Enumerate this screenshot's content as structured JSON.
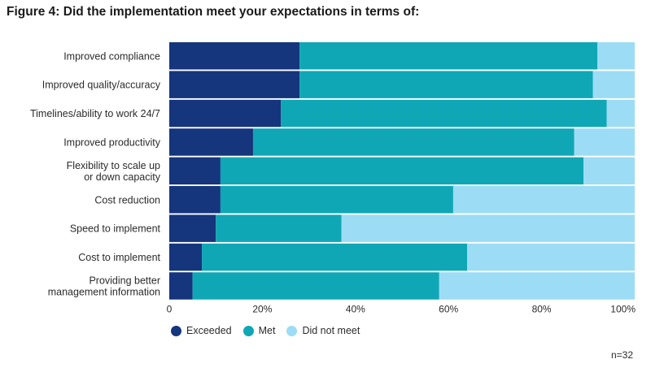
{
  "title": "Figure 4: Did the implementation meet your expectations in terms of:",
  "sample_note": "n=32",
  "colors": {
    "exceeded": "#15357d",
    "met": "#0fa7b5",
    "did_not_meet": "#9ddcf5"
  },
  "chart_data": {
    "type": "bar",
    "orientation": "horizontal",
    "stacked": true,
    "categories": [
      "Improved compliance",
      "Improved quality/accuracy",
      "Timelines/ability to work 24/7",
      "Improved productivity",
      "Flexibility to scale up\nor down capacity",
      "Cost reduction",
      "Speed to implement",
      "Cost to implement",
      "Providing better\nmanagement information"
    ],
    "series": [
      {
        "name": "Exceeded",
        "values": [
          28,
          28,
          24,
          18,
          11,
          11,
          10,
          7,
          5
        ]
      },
      {
        "name": "Met",
        "values": [
          64,
          63,
          70,
          69,
          78,
          50,
          27,
          57,
          53
        ]
      },
      {
        "name": "Did not meet",
        "values": [
          8,
          9,
          6,
          13,
          11,
          39,
          63,
          36,
          42
        ]
      }
    ],
    "x_ticks": [
      "0",
      "20%",
      "40%",
      "60%",
      "80%",
      "100%"
    ],
    "xlim": [
      0,
      100
    ],
    "legend_position": "bottom-left",
    "grid": false
  }
}
